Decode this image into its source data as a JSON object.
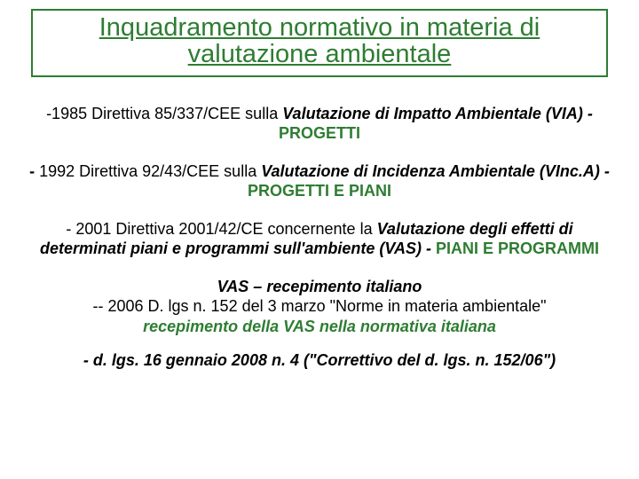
{
  "colors": {
    "title_color": "#2e7d32",
    "border_color": "#2e7d32",
    "accent_green": "#2e7d32",
    "text_black": "#000000",
    "background": "#ffffff"
  },
  "title": {
    "line1": "Inquadramento normativo in materia di",
    "line2": "valutazione ambientale",
    "fontsize": 29
  },
  "entries": [
    {
      "prefix": "-1985 Direttiva 85/337/CEE sulla ",
      "bold_ital": "Valutazione di Impatto Ambientale (VIA) - ",
      "green": "PROGETTI"
    },
    {
      "prefix_bold_dash": "- ",
      "prefix": "1992 Direttiva 92/43/CEE sulla ",
      "bold_ital": "Valutazione di Incidenza Ambientale (VInc.A) - ",
      "green": "PROGETTI E PIANI"
    },
    {
      "prefix": "- 2001 Direttiva 2001/42/CE concernente la ",
      "bold_ital": "Valutazione degli effetti di determinati piani e programmi sull'ambiente (VAS) - ",
      "green": "PIANI E PROGRAMMI"
    }
  ],
  "recep": {
    "heading": "VAS – recepimento italiano",
    "line2a": "-- 2006 D. lgs n. 152 del 3 marzo \"Norme in materia ambientale\"",
    "line3_green": "recepimento della VAS nella normativa italiana"
  },
  "last": {
    "text": "- d. lgs. 16 gennaio 2008 n. 4 (\"Correttivo del d. lgs. n. 152/06\")"
  }
}
